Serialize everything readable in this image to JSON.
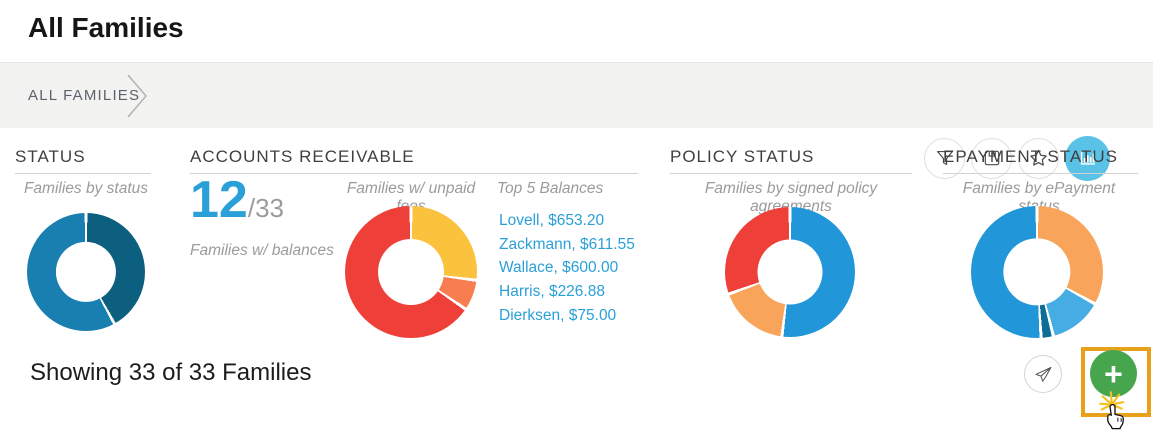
{
  "page": {
    "title": "All Families",
    "showing_text": "Showing 33 of 33 Families"
  },
  "breadcrumb": {
    "label": "ALL FAMILIES"
  },
  "toolbar": {
    "active_color": "#5bc2e7",
    "buttons": [
      {
        "name": "filter",
        "icon": "funnel-icon",
        "active": false
      },
      {
        "name": "save-view",
        "icon": "floppy-disk-icon",
        "active": false
      },
      {
        "name": "favorites",
        "icon": "star-icon",
        "active": false
      },
      {
        "name": "charts",
        "icon": "bar-chart-icon",
        "active": true
      }
    ]
  },
  "panels": {
    "status": {
      "heading": "STATUS",
      "subtitle": "Families by status"
    },
    "accounts_receivable": {
      "heading": "ACCOUNTS RECEIVABLE",
      "metric_value": "12",
      "metric_total": "/33",
      "metric_label": "Families w/ balances",
      "chart_subtitle": "Families w/ unpaid fees",
      "balances_heading": "Top 5 Balances",
      "balances": [
        "Lovell, $653.20",
        "Zackmann, $611.55",
        "Wallace, $600.00",
        "Harris, $226.88",
        "Dierksen, $75.00"
      ]
    },
    "policy": {
      "heading": "POLICY STATUS",
      "subtitle": "Families by signed policy agreements"
    },
    "epayment": {
      "heading": "EPAYMENT STATUS",
      "subtitle": "Families by ePayment status"
    }
  },
  "chart_data": [
    {
      "id": "status_donut",
      "type": "donut",
      "title": "Families by status",
      "hole_pct": 51,
      "segments": [
        {
          "name": "dark-blue",
          "pct": 42,
          "color": "#0d5f80"
        },
        {
          "name": "blue",
          "pct": 58,
          "color": "#197fb0"
        }
      ]
    },
    {
      "id": "accounts_receivable_donut",
      "type": "donut",
      "title": "Families w/ unpaid fees",
      "hole_pct": 50,
      "segments": [
        {
          "name": "yellow",
          "pct": 27,
          "color": "#fbc23d"
        },
        {
          "name": "orange",
          "pct": 7.5,
          "color": "#f87e51"
        },
        {
          "name": "red",
          "pct": 65.5,
          "color": "#ee4038"
        }
      ]
    },
    {
      "id": "policy_donut",
      "type": "donut",
      "title": "Families by signed policy agreements",
      "hole_pct": 50,
      "segments": [
        {
          "name": "blue",
          "pct": 52,
          "color": "#2196d8"
        },
        {
          "name": "orange",
          "pct": 17.5,
          "color": "#f9a45b"
        },
        {
          "name": "red",
          "pct": 30.5,
          "color": "#ee4038"
        }
      ]
    },
    {
      "id": "epayment_donut",
      "type": "donut",
      "title": "Families by ePayment status",
      "hole_pct": 51,
      "segments": [
        {
          "name": "orange",
          "pct": 33,
          "color": "#f9a45b"
        },
        {
          "name": "light-blue",
          "pct": 13,
          "color": "#45ace4"
        },
        {
          "name": "dark-blue",
          "pct": 3,
          "color": "#0c6e96"
        },
        {
          "name": "blue",
          "pct": 51,
          "color": "#2196d8"
        }
      ]
    }
  ],
  "footer": {
    "add_label": "+",
    "add_color": "#47a54e",
    "highlight_color": "#e7a11a",
    "send_icon": "paper-plane-icon",
    "cursor": "click-hand-cursor"
  }
}
